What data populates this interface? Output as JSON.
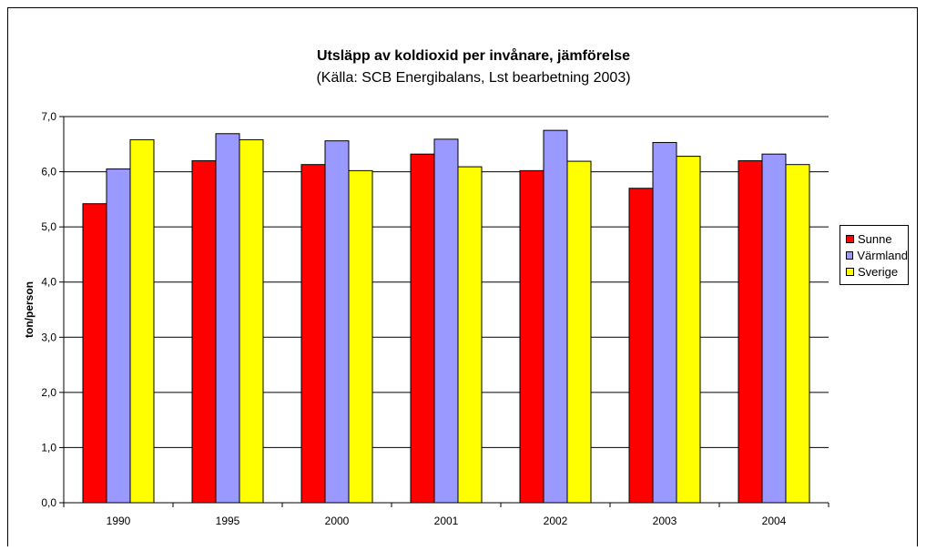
{
  "chart_data": {
    "type": "bar",
    "title": "Utsläpp av koldioxid per invånare, jämförelse",
    "subtitle": "(Källa: SCB Energibalans, Lst bearbetning 2003)",
    "xlabel": "",
    "ylabel": "ton/person",
    "ylim": [
      0,
      7
    ],
    "yticks": [
      "0,0",
      "1,0",
      "2,0",
      "3,0",
      "4,0",
      "5,0",
      "6,0",
      "7,0"
    ],
    "categories": [
      "1990",
      "1995",
      "2000",
      "2001",
      "2002",
      "2003",
      "2004"
    ],
    "series": [
      {
        "name": "Sunne",
        "color": "#ff0000",
        "values": [
          5.42,
          6.2,
          6.13,
          6.32,
          6.02,
          5.7,
          6.2
        ]
      },
      {
        "name": "Värmland",
        "color": "#9999ff",
        "values": [
          6.05,
          6.69,
          6.56,
          6.59,
          6.75,
          6.53,
          6.32
        ]
      },
      {
        "name": "Sverige",
        "color": "#ffff00",
        "values": [
          6.58,
          6.58,
          6.02,
          6.09,
          6.19,
          6.28,
          6.13
        ]
      }
    ],
    "grid": true,
    "legend": "right"
  }
}
